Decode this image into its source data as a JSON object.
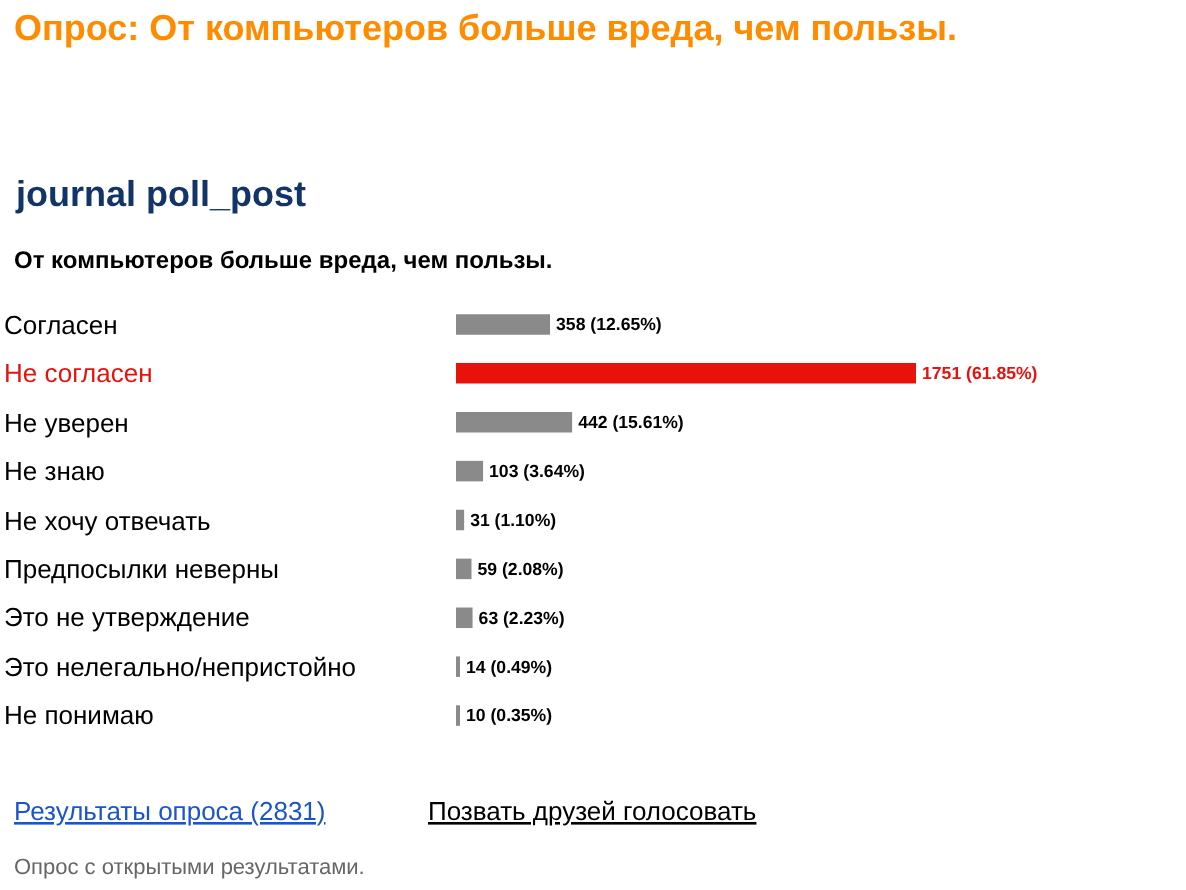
{
  "chart_data": {
    "type": "bar",
    "orientation": "horizontal",
    "title": "Опрос: От компьютеров больше вреда, чем пользы.",
    "subtitle": "journal poll_post",
    "categories": [
      "Согласен",
      "Не согласен",
      "Не уверен",
      "Не знаю",
      "Не хочу отвечать",
      "Предпосылки неверны",
      "Это не утверждение",
      "Это нелегально/непристойно",
      "Не понимаю"
    ],
    "values": [
      358,
      1751,
      442,
      103,
      31,
      59,
      63,
      14,
      10
    ],
    "value_labels": [
      "358 (12.65%)",
      "1751 (61.85%)",
      "442 (15.61%)",
      "103 (3.64%)",
      "31 (1.10%)",
      "59 (2.08%)",
      "63 (2.23%)",
      "14 (0.49%)",
      "10 (0.35%)"
    ],
    "colors": [
      "#8a8a8a",
      "#e8120c",
      "#8a8a8a",
      "#8a8a8a",
      "#8a8a8a",
      "#8a8a8a",
      "#8a8a8a",
      "#8a8a8a",
      "#8a8a8a"
    ],
    "annotations": [
      "От компьютеров больше вреда, чем пользы.",
      "Результаты опроса (2831)",
      "Позвать друзей голосовать",
      "Опрос с открытыми результатами."
    ]
  }
}
